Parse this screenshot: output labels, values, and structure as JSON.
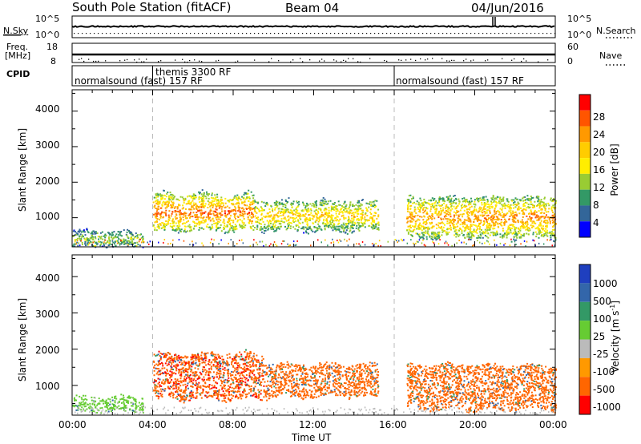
{
  "header": {
    "station": "South Pole Station (fitACF)",
    "beam": "Beam 04",
    "date": "04/Jun/2016"
  },
  "noise_panel": {
    "left_label": "N.Sky",
    "right_label": "N.Search",
    "left_ticks": [
      "10^5",
      "10^0"
    ],
    "right_ticks": [
      "10^5",
      "10^0"
    ]
  },
  "freq_panel": {
    "left_label_top": "Freq.",
    "left_label_bottom": "[MHz]",
    "right_label": "Nave",
    "left_ticks": [
      "18",
      "8"
    ],
    "right_ticks": [
      "60",
      "0"
    ]
  },
  "cpid": {
    "label": "CPID",
    "segments": [
      {
        "name": "normalsound (fast) 157 RF",
        "start_h": 0,
        "end_h": 4
      },
      {
        "name": "themis 3300 RF",
        "start_h": 4,
        "end_h": 16
      },
      {
        "name": "normalsound (fast) 157 RF",
        "start_h": 16,
        "end_h": 24
      }
    ]
  },
  "power_colorbar": {
    "label": "Power [dB]",
    "ticks": [
      "28",
      "24",
      "20",
      "16",
      "12",
      "8",
      "4"
    ],
    "colors": [
      "#ff0000",
      "#ff5500",
      "#ff9900",
      "#ffcc00",
      "#ffee00",
      "#99cc33",
      "#339966",
      "#336699",
      "#0000ff"
    ]
  },
  "velocity_colorbar": {
    "label": "Velocity [m s",
    "label_sup": "-1",
    "label_end": "]",
    "ticks": [
      "1000",
      "500",
      "100",
      "25",
      "-25",
      "-100",
      "-500",
      "-1000"
    ],
    "colors": [
      "#1f3fbf",
      "#3366aa",
      "#339966",
      "#66cc33",
      "#bbbbbb",
      "#ff9900",
      "#ff6600",
      "#ff0000"
    ]
  },
  "axes": {
    "ylabel": "Slant Range [km]",
    "xlabel": "Time UT",
    "yticks": [
      "1000",
      "2000",
      "3000",
      "4000"
    ],
    "xticks": [
      "00:00",
      "04:00",
      "08:00",
      "12:00",
      "16:00",
      "20:00",
      "00:00"
    ]
  },
  "chart_data": [
    {
      "type": "heatmap",
      "name": "power",
      "x_range_hours": [
        0,
        24
      ],
      "ylim_km": [
        180,
        4600
      ],
      "zlim_db": [
        0,
        32
      ],
      "scatter_regions": [
        {
          "t_start": 0.0,
          "t_end": 3.5,
          "r_min": 200,
          "r_max": 650,
          "level_db": 10
        },
        {
          "t_start": 4.0,
          "t_end": 9.0,
          "r_min": 650,
          "r_max": 1700,
          "level_db": 22
        },
        {
          "t_start": 9.0,
          "t_end": 15.2,
          "r_min": 650,
          "r_max": 1500,
          "level_db": 16
        },
        {
          "t_start": 16.6,
          "t_end": 24.0,
          "r_min": 450,
          "r_max": 1600,
          "level_db": 20
        }
      ]
    },
    {
      "type": "heatmap",
      "name": "velocity",
      "x_range_hours": [
        0,
        24
      ],
      "ylim_km": [
        180,
        4600
      ],
      "zlim_mps": [
        -1000,
        1000
      ],
      "scatter_regions": [
        {
          "t_start": 0.0,
          "t_end": 3.5,
          "r_min": 300,
          "r_max": 700,
          "level_mps": 50
        },
        {
          "t_start": 4.0,
          "t_end": 9.5,
          "r_min": 650,
          "r_max": 1900,
          "level_mps": -300
        },
        {
          "t_start": 9.5,
          "t_end": 15.2,
          "r_min": 700,
          "r_max": 1600,
          "level_mps": -250
        },
        {
          "t_start": 16.6,
          "t_end": 24.0,
          "r_min": 350,
          "r_max": 1600,
          "level_mps": -250
        }
      ]
    }
  ]
}
